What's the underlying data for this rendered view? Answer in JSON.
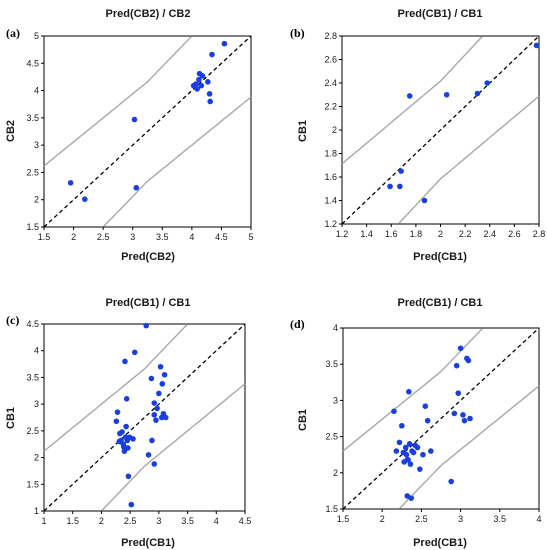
{
  "chart_data": [
    {
      "panel": "(a)",
      "type": "scatter",
      "title": "Pred(CB2) / CB2",
      "xlabel": "Pred(CB2)",
      "ylabel": "CB2",
      "xlim": [
        1.5,
        5
      ],
      "ylim": [
        1.5,
        5
      ],
      "xticks": [
        1.5,
        2,
        2.5,
        3,
        3.5,
        4,
        4.5,
        5
      ],
      "yticks": [
        1.5,
        2,
        2.5,
        3,
        3.5,
        4,
        4.5,
        5
      ],
      "x_tick_labels": [
        "1.5",
        "2",
        "2.5",
        "3",
        "3.5",
        "4",
        "4.5",
        "5"
      ],
      "y_tick_labels": [
        "1.5",
        "2",
        "2.5",
        "3",
        "3.5",
        "4",
        "4.5",
        "5"
      ],
      "x": [
        1.95,
        2.19,
        3.03,
        3.06,
        4.03,
        4.07,
        4.09,
        4.12,
        4.13,
        4.16,
        4.18,
        4.27,
        4.3,
        4.31,
        4.34,
        4.55
      ],
      "y": [
        2.31,
        2.01,
        3.47,
        2.22,
        4.09,
        4.12,
        4.03,
        4.2,
        4.31,
        4.09,
        4.27,
        4.16,
        3.94,
        3.8,
        4.66,
        4.86
      ],
      "reference_line": "y = x (dashed)",
      "confidence_bands": "gray curves above and below the diagonal",
      "grid": false,
      "colors": {
        "points": "#1a3fe0",
        "bands": "#a8a8a8",
        "diagonal": "#000000"
      }
    },
    {
      "panel": "(b)",
      "type": "scatter",
      "title": "Pred(CB1) / CB1",
      "xlabel": "Pred(CB1)",
      "ylabel": "CB1",
      "xlim": [
        1.2,
        2.8
      ],
      "ylim": [
        1.2,
        2.8
      ],
      "xticks": [
        1.2,
        1.4,
        1.6,
        1.8,
        2.0,
        2.2,
        2.4,
        2.6,
        2.8
      ],
      "yticks": [
        1.2,
        1.4,
        1.6,
        1.8,
        2.0,
        2.2,
        2.4,
        2.6,
        2.8
      ],
      "x_tick_labels": [
        "1.2",
        "1.4",
        "1.6",
        "1.8",
        "2",
        "2.2",
        "2.4",
        "2.6",
        "2.8"
      ],
      "y_tick_labels": [
        "1.2",
        "1.4",
        "1.6",
        "1.8",
        "2",
        "2.2",
        "2.4",
        "2.6",
        "2.8"
      ],
      "x": [
        1.59,
        1.67,
        1.68,
        1.75,
        1.87,
        2.05,
        2.3,
        2.38,
        2.78
      ],
      "y": [
        1.52,
        1.52,
        1.65,
        2.29,
        1.4,
        2.3,
        2.31,
        2.4,
        2.72
      ],
      "reference_line": "y = x (dashed)",
      "confidence_bands": "gray curves above and below the diagonal",
      "grid": false,
      "colors": {
        "points": "#1a3fe0",
        "bands": "#a8a8a8",
        "diagonal": "#000000"
      }
    },
    {
      "panel": "(c)",
      "type": "scatter",
      "title": "Pred(CB1) / CB1",
      "xlabel": "Pred(CB1)",
      "ylabel": "CB1",
      "xlim": [
        1,
        4.5
      ],
      "ylim": [
        1,
        4.5
      ],
      "xticks": [
        1,
        1.5,
        2,
        2.5,
        3,
        3.5,
        4,
        4.5
      ],
      "yticks": [
        1,
        1.5,
        2,
        2.5,
        3,
        3.5,
        4,
        4.5
      ],
      "x_tick_labels": [
        "1",
        "1.5",
        "2",
        "2.5",
        "3",
        "3.5",
        "4",
        "4.5"
      ],
      "y_tick_labels": [
        "1",
        "1.5",
        "2",
        "2.5",
        "3",
        "3.5",
        "4",
        "4.5"
      ],
      "x": [
        2.26,
        2.28,
        2.31,
        2.32,
        2.34,
        2.36,
        2.38,
        2.39,
        2.4,
        2.41,
        2.42,
        2.43,
        2.44,
        2.45,
        2.46,
        2.47,
        2.49,
        2.52,
        2.55,
        2.58,
        2.78,
        2.82,
        2.88,
        2.92,
        2.95,
        2.97,
        3.0,
        3.03,
        3.05,
        3.06,
        3.08,
        3.1,
        3.12,
        2.87,
        2.92,
        2.92
      ],
      "y": [
        2.68,
        2.85,
        2.3,
        2.45,
        2.32,
        2.48,
        2.25,
        2.2,
        2.12,
        3.8,
        2.38,
        2.58,
        3.1,
        2.32,
        2.18,
        1.65,
        2.38,
        1.12,
        2.35,
        3.97,
        4.47,
        2.05,
        2.32,
        1.88,
        2.7,
        2.92,
        3.2,
        3.7,
        2.75,
        3.38,
        2.82,
        3.55,
        2.75,
        3.48,
        2.8,
        3.02
      ],
      "reference_line": "y = x (dashed)",
      "confidence_bands": "gray curves above and below the diagonal",
      "grid": false,
      "colors": {
        "points": "#1a3fe0",
        "bands": "#a8a8a8",
        "diagonal": "#000000"
      }
    },
    {
      "panel": "(d)",
      "type": "scatter",
      "title": "Pred(CB1) / CB1",
      "xlabel": "Pred(CB1)",
      "ylabel": "CB1",
      "xlim": [
        1.5,
        4
      ],
      "ylim": [
        1.5,
        4
      ],
      "xticks": [
        1.5,
        2,
        2.5,
        3,
        3.5,
        4
      ],
      "yticks": [
        1.5,
        2,
        2.5,
        3,
        3.5,
        4
      ],
      "x_tick_labels": [
        "1.5",
        "2",
        "2.5",
        "3",
        "3.5",
        "4"
      ],
      "y_tick_labels": [
        "1.5",
        "2",
        "2.5",
        "3",
        "3.5",
        "4"
      ],
      "x": [
        2.15,
        2.18,
        2.22,
        2.25,
        2.27,
        2.28,
        2.3,
        2.31,
        2.32,
        2.33,
        2.34,
        2.35,
        2.36,
        2.37,
        2.38,
        2.4,
        2.42,
        2.45,
        2.48,
        2.52,
        2.55,
        2.58,
        2.62,
        2.88,
        2.92,
        2.95,
        2.97,
        3.0,
        3.03,
        3.05,
        3.08,
        3.1,
        3.12,
        2.32
      ],
      "y": [
        2.85,
        2.3,
        2.42,
        2.65,
        2.28,
        2.15,
        2.35,
        2.25,
        1.68,
        2.18,
        3.12,
        2.4,
        2.12,
        1.65,
        2.3,
        2.28,
        2.38,
        2.35,
        2.05,
        2.25,
        2.92,
        2.72,
        2.3,
        1.88,
        2.82,
        3.48,
        3.1,
        3.72,
        2.8,
        2.72,
        3.58,
        3.55,
        2.75,
        2.18
      ],
      "reference_line": "y = x (dashed)",
      "confidence_bands": "gray curves above and below the diagonal",
      "grid": false,
      "colors": {
        "points": "#1a3fe0",
        "bands": "#a8a8a8",
        "diagonal": "#000000"
      }
    }
  ]
}
